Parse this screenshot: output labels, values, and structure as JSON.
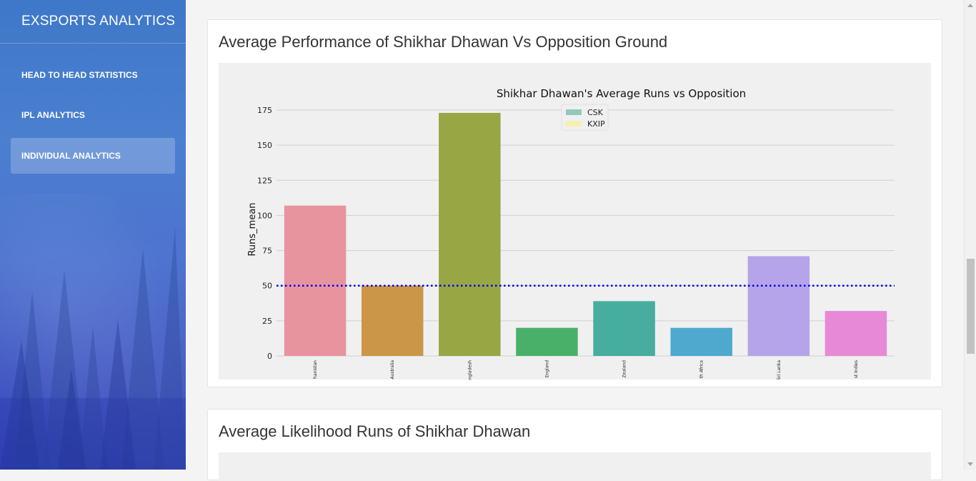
{
  "sidebar": {
    "brand": "EXSPORTS ANALYTICS",
    "items": [
      {
        "label": "HEAD TO HEAD STATISTICS",
        "active": false
      },
      {
        "label": "IPL ANALYTICS",
        "active": false
      },
      {
        "label": "INDIVIDUAL ANALYTICS",
        "active": true
      }
    ]
  },
  "cards": [
    {
      "title": "Average Performance of Shikhar Dhawan Vs Opposition Ground"
    },
    {
      "title": "Average Likelihood Runs of Shikhar Dhawan"
    }
  ],
  "chart_data": {
    "type": "bar",
    "title": "Shikhar Dhawan's Average Runs vs Opposition",
    "xlabel": "",
    "ylabel": "Runs_mean",
    "ylim": [
      0,
      175
    ],
    "yticks": [
      0,
      25,
      50,
      75,
      100,
      125,
      150,
      175
    ],
    "categories": [
      "Afghanistan",
      "Australia",
      "Bangladesh",
      "England",
      "New Zealand",
      "South Africa",
      "Sri Lanka",
      "West Indies"
    ],
    "category_tick_labels": [
      "hanistan",
      "Australia",
      "ngladesh",
      "England",
      "Zealand",
      "th Africa",
      "Sri Lanka",
      "st Indies"
    ],
    "values": [
      107,
      50,
      173,
      20,
      39,
      20,
      71,
      32
    ],
    "bar_colors": [
      "#e8949f",
      "#cb9647",
      "#98a644",
      "#49b06a",
      "#46ad9f",
      "#4fa9cf",
      "#b5a4ea",
      "#e68ad8"
    ],
    "reference_line": {
      "value": 50,
      "color": "#0000ee",
      "style": "dotted"
    },
    "legend": {
      "placement": "top-center",
      "entries": [
        {
          "label": "CSK",
          "color": "#93c9bd"
        },
        {
          "label": "KXIP",
          "color": "#f4f0b0"
        }
      ]
    },
    "grid": true
  }
}
